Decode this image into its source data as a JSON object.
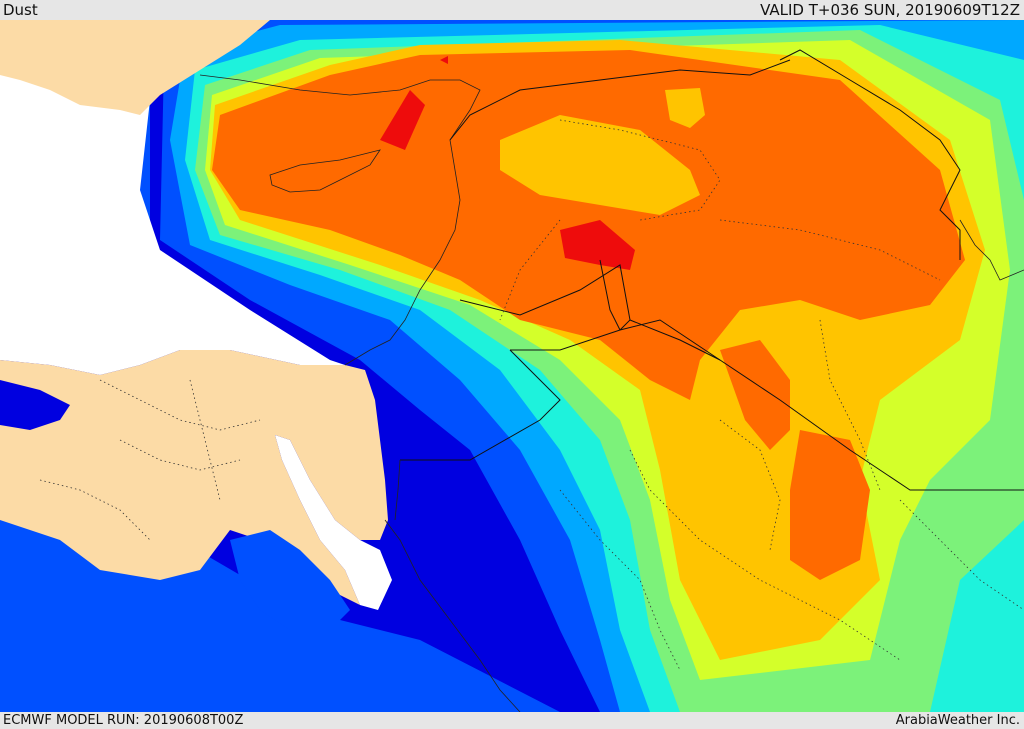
{
  "header": {
    "title": "Dust",
    "valid": "VALID T+036 SUN, 20190609T12Z"
  },
  "footer": {
    "model_run": "ECMWF MODEL RUN: 20190608T00Z",
    "credit": "ArabiaWeather Inc."
  },
  "palette": {
    "land": "#fcdba6",
    "sea": "#ffffff",
    "level_1": "#0000e0",
    "level_2": "#0050ff",
    "level_3": "#00a8ff",
    "level_4": "#1ef2dc",
    "level_5": "#7cf27a",
    "level_6": "#d4ff2a",
    "level_7": "#ffc400",
    "level_8": "#ff6a00",
    "level_9": "#ee0c0c"
  }
}
